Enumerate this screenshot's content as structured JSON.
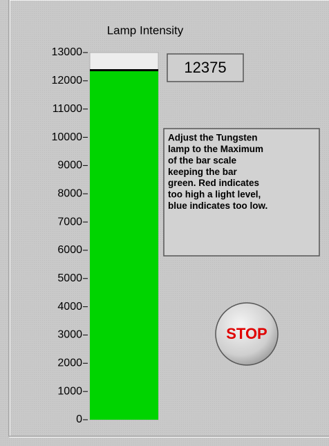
{
  "title": "Lamp Intensity",
  "bar": {
    "value": 12375,
    "range": [
      0,
      13000
    ],
    "ticks": [
      0,
      1000,
      2000,
      3000,
      4000,
      5000,
      6000,
      7000,
      8000,
      9000,
      10000,
      11000,
      12000,
      13000
    ],
    "color": "#00d400"
  },
  "note": {
    "lines": [
      "Adjust the Tungsten",
      "lamp to the Maximum",
      "of the bar scale",
      "keeping the bar",
      "green.  Red indicates",
      "too high a light level,",
      "blue indicates too low."
    ]
  },
  "button": {
    "label": "STOP"
  }
}
